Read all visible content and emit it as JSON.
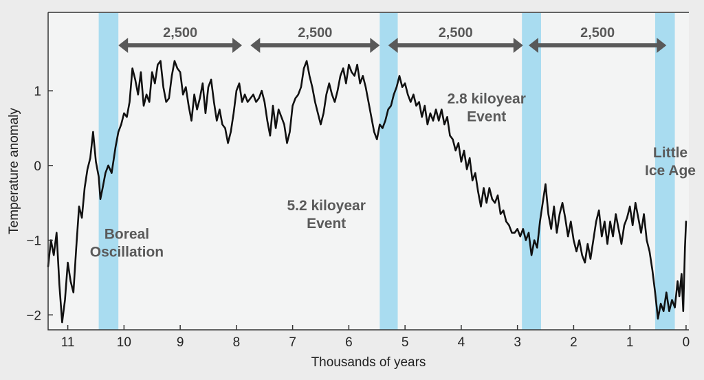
{
  "chart_data": {
    "type": "line",
    "xlabel": "Thousands of years",
    "ylabel": "Temperature anomaly",
    "xlim": [
      11.35,
      -0.05
    ],
    "ylim": [
      -2.2,
      2.05
    ],
    "x_ticks": [
      11,
      10,
      9,
      8,
      7,
      6,
      5,
      4,
      3,
      2,
      1,
      0
    ],
    "y_ticks": [
      1,
      0,
      -1,
      -2
    ],
    "y_tick_labels": [
      "1",
      "0",
      "−1",
      "−2"
    ],
    "grid": false,
    "colors": {
      "line": "#111111",
      "band": "#a9dcf0",
      "arrow": "#595959",
      "annotation": "#5a5a5a"
    },
    "series": [
      {
        "values": [
          [
            11.35,
            -1.35
          ],
          [
            11.3,
            -1.0
          ],
          [
            11.25,
            -1.2
          ],
          [
            11.2,
            -0.9
          ],
          [
            11.15,
            -1.6
          ],
          [
            11.1,
            -2.1
          ],
          [
            11.05,
            -1.8
          ],
          [
            11.0,
            -1.3
          ],
          [
            10.95,
            -1.55
          ],
          [
            10.9,
            -1.7
          ],
          [
            10.85,
            -1.1
          ],
          [
            10.8,
            -0.55
          ],
          [
            10.75,
            -0.7
          ],
          [
            10.7,
            -0.3
          ],
          [
            10.65,
            -0.05
          ],
          [
            10.6,
            0.1
          ],
          [
            10.55,
            0.45
          ],
          [
            10.5,
            0.05
          ],
          [
            10.45,
            -0.15
          ],
          [
            10.42,
            -0.45
          ],
          [
            10.38,
            -0.3
          ],
          [
            10.33,
            -0.1
          ],
          [
            10.28,
            0.0
          ],
          [
            10.22,
            -0.1
          ],
          [
            10.15,
            0.25
          ],
          [
            10.1,
            0.45
          ],
          [
            10.05,
            0.55
          ],
          [
            10.0,
            0.7
          ],
          [
            9.95,
            0.65
          ],
          [
            9.9,
            0.85
          ],
          [
            9.85,
            1.3
          ],
          [
            9.8,
            1.15
          ],
          [
            9.75,
            0.95
          ],
          [
            9.7,
            1.25
          ],
          [
            9.65,
            0.8
          ],
          [
            9.6,
            0.95
          ],
          [
            9.55,
            0.85
          ],
          [
            9.5,
            1.25
          ],
          [
            9.45,
            1.1
          ],
          [
            9.4,
            1.35
          ],
          [
            9.35,
            1.4
          ],
          [
            9.3,
            1.05
          ],
          [
            9.25,
            0.85
          ],
          [
            9.2,
            0.9
          ],
          [
            9.15,
            1.2
          ],
          [
            9.1,
            1.4
          ],
          [
            9.05,
            1.3
          ],
          [
            9.0,
            1.25
          ],
          [
            8.95,
            0.95
          ],
          [
            8.9,
            1.05
          ],
          [
            8.85,
            0.8
          ],
          [
            8.8,
            0.6
          ],
          [
            8.75,
            0.95
          ],
          [
            8.7,
            0.75
          ],
          [
            8.65,
            0.9
          ],
          [
            8.6,
            1.1
          ],
          [
            8.55,
            0.7
          ],
          [
            8.5,
            1.05
          ],
          [
            8.45,
            1.15
          ],
          [
            8.4,
            0.85
          ],
          [
            8.35,
            0.6
          ],
          [
            8.3,
            0.75
          ],
          [
            8.25,
            0.55
          ],
          [
            8.2,
            0.5
          ],
          [
            8.15,
            0.3
          ],
          [
            8.1,
            0.45
          ],
          [
            8.05,
            0.7
          ],
          [
            8.0,
            1.0
          ],
          [
            7.95,
            1.1
          ],
          [
            7.9,
            0.85
          ],
          [
            7.85,
            0.95
          ],
          [
            7.8,
            0.85
          ],
          [
            7.75,
            0.9
          ],
          [
            7.7,
            0.95
          ],
          [
            7.65,
            0.85
          ],
          [
            7.6,
            0.9
          ],
          [
            7.55,
            1.0
          ],
          [
            7.5,
            0.85
          ],
          [
            7.45,
            0.6
          ],
          [
            7.4,
            0.4
          ],
          [
            7.35,
            0.8
          ],
          [
            7.3,
            0.5
          ],
          [
            7.25,
            0.75
          ],
          [
            7.2,
            0.65
          ],
          [
            7.15,
            0.55
          ],
          [
            7.1,
            0.3
          ],
          [
            7.05,
            0.45
          ],
          [
            7.0,
            0.8
          ],
          [
            6.95,
            0.9
          ],
          [
            6.9,
            0.95
          ],
          [
            6.85,
            1.05
          ],
          [
            6.8,
            1.3
          ],
          [
            6.75,
            1.4
          ],
          [
            6.7,
            1.2
          ],
          [
            6.65,
            1.05
          ],
          [
            6.6,
            0.85
          ],
          [
            6.55,
            0.7
          ],
          [
            6.5,
            0.55
          ],
          [
            6.45,
            0.7
          ],
          [
            6.4,
            0.95
          ],
          [
            6.35,
            1.1
          ],
          [
            6.3,
            0.95
          ],
          [
            6.25,
            0.85
          ],
          [
            6.2,
            1.0
          ],
          [
            6.15,
            1.2
          ],
          [
            6.1,
            1.3
          ],
          [
            6.05,
            1.1
          ],
          [
            6.0,
            1.35
          ],
          [
            5.95,
            1.25
          ],
          [
            5.9,
            1.2
          ],
          [
            5.85,
            1.35
          ],
          [
            5.8,
            1.1
          ],
          [
            5.75,
            1.2
          ],
          [
            5.7,
            1.05
          ],
          [
            5.65,
            0.85
          ],
          [
            5.6,
            0.65
          ],
          [
            5.55,
            0.45
          ],
          [
            5.5,
            0.35
          ],
          [
            5.45,
            0.55
          ],
          [
            5.4,
            0.5
          ],
          [
            5.35,
            0.6
          ],
          [
            5.3,
            0.75
          ],
          [
            5.25,
            0.8
          ],
          [
            5.2,
            0.95
          ],
          [
            5.15,
            1.05
          ],
          [
            5.1,
            1.2
          ],
          [
            5.05,
            1.05
          ],
          [
            5.0,
            1.1
          ],
          [
            4.95,
            0.95
          ],
          [
            4.9,
            0.85
          ],
          [
            4.85,
            0.95
          ],
          [
            4.8,
            0.8
          ],
          [
            4.75,
            0.85
          ],
          [
            4.7,
            0.65
          ],
          [
            4.65,
            0.8
          ],
          [
            4.6,
            0.55
          ],
          [
            4.55,
            0.7
          ],
          [
            4.5,
            0.6
          ],
          [
            4.45,
            0.75
          ],
          [
            4.4,
            0.6
          ],
          [
            4.35,
            0.75
          ],
          [
            4.3,
            0.55
          ],
          [
            4.25,
            0.65
          ],
          [
            4.2,
            0.4
          ],
          [
            4.15,
            0.35
          ],
          [
            4.1,
            0.2
          ],
          [
            4.05,
            0.3
          ],
          [
            4.0,
            0.05
          ],
          [
            3.95,
            0.2
          ],
          [
            3.9,
            -0.05
          ],
          [
            3.85,
            0.1
          ],
          [
            3.8,
            -0.2
          ],
          [
            3.75,
            -0.1
          ],
          [
            3.7,
            -0.35
          ],
          [
            3.65,
            -0.55
          ],
          [
            3.6,
            -0.3
          ],
          [
            3.55,
            -0.5
          ],
          [
            3.5,
            -0.3
          ],
          [
            3.45,
            -0.45
          ],
          [
            3.4,
            -0.5
          ],
          [
            3.35,
            -0.4
          ],
          [
            3.3,
            -0.65
          ],
          [
            3.25,
            -0.6
          ],
          [
            3.2,
            -0.75
          ],
          [
            3.15,
            -0.8
          ],
          [
            3.1,
            -0.9
          ],
          [
            3.05,
            -0.9
          ],
          [
            3.0,
            -0.85
          ],
          [
            2.95,
            -0.95
          ],
          [
            2.9,
            -0.85
          ],
          [
            2.85,
            -1.0
          ],
          [
            2.8,
            -0.9
          ],
          [
            2.75,
            -1.2
          ],
          [
            2.7,
            -1.0
          ],
          [
            2.65,
            -1.1
          ],
          [
            2.6,
            -0.75
          ],
          [
            2.55,
            -0.5
          ],
          [
            2.5,
            -0.25
          ],
          [
            2.45,
            -0.65
          ],
          [
            2.4,
            -0.85
          ],
          [
            2.35,
            -0.55
          ],
          [
            2.3,
            -0.9
          ],
          [
            2.25,
            -0.65
          ],
          [
            2.2,
            -0.5
          ],
          [
            2.15,
            -0.7
          ],
          [
            2.1,
            -0.95
          ],
          [
            2.05,
            -0.75
          ],
          [
            2.0,
            -1.0
          ],
          [
            1.95,
            -1.15
          ],
          [
            1.9,
            -1.0
          ],
          [
            1.85,
            -1.2
          ],
          [
            1.8,
            -1.3
          ],
          [
            1.75,
            -1.05
          ],
          [
            1.7,
            -1.25
          ],
          [
            1.65,
            -1.0
          ],
          [
            1.6,
            -0.75
          ],
          [
            1.55,
            -0.6
          ],
          [
            1.5,
            -0.95
          ],
          [
            1.45,
            -0.75
          ],
          [
            1.4,
            -1.05
          ],
          [
            1.35,
            -0.75
          ],
          [
            1.3,
            -0.95
          ],
          [
            1.25,
            -0.65
          ],
          [
            1.2,
            -0.85
          ],
          [
            1.15,
            -1.05
          ],
          [
            1.1,
            -0.8
          ],
          [
            1.05,
            -0.7
          ],
          [
            1.0,
            -0.55
          ],
          [
            0.95,
            -0.8
          ],
          [
            0.9,
            -0.5
          ],
          [
            0.85,
            -0.7
          ],
          [
            0.8,
            -0.9
          ],
          [
            0.75,
            -0.65
          ],
          [
            0.7,
            -1.0
          ],
          [
            0.65,
            -1.15
          ],
          [
            0.6,
            -1.4
          ],
          [
            0.55,
            -1.7
          ],
          [
            0.5,
            -2.05
          ],
          [
            0.45,
            -1.85
          ],
          [
            0.4,
            -1.95
          ],
          [
            0.35,
            -1.7
          ],
          [
            0.3,
            -1.95
          ],
          [
            0.25,
            -1.8
          ],
          [
            0.2,
            -1.9
          ],
          [
            0.15,
            -1.55
          ],
          [
            0.12,
            -1.75
          ],
          [
            0.08,
            -1.45
          ],
          [
            0.05,
            -1.95
          ],
          [
            0.02,
            -1.1
          ],
          [
            0.0,
            -0.75
          ]
        ]
      }
    ],
    "bands": [
      {
        "x_from": 10.45,
        "x_to": 10.1
      },
      {
        "x_from": 5.45,
        "x_to": 5.13
      },
      {
        "x_from": 2.92,
        "x_to": 2.58
      },
      {
        "x_from": 0.55,
        "x_to": 0.2
      }
    ],
    "arrows": [
      {
        "x_from": 10.1,
        "x_to": 7.9,
        "label": "2,500"
      },
      {
        "x_from": 7.75,
        "x_to": 5.45,
        "label": "2,500"
      },
      {
        "x_from": 5.3,
        "x_to": 2.9,
        "label": "2,500"
      },
      {
        "x_from": 2.8,
        "x_to": 0.35,
        "label": "2,500"
      }
    ],
    "annotations": [
      {
        "lines": [
          "Boreal",
          "Oscillation"
        ],
        "x": 9.95,
        "y": -0.98
      },
      {
        "lines": [
          "5.2 kiloyear",
          "Event"
        ],
        "x": 6.4,
        "y": -0.6
      },
      {
        "lines": [
          "2.8 kiloyear",
          "Event"
        ],
        "x": 3.55,
        "y": 0.83
      },
      {
        "lines": [
          "Little",
          "Ice Age"
        ],
        "x": 0.28,
        "y": 0.11
      }
    ]
  }
}
